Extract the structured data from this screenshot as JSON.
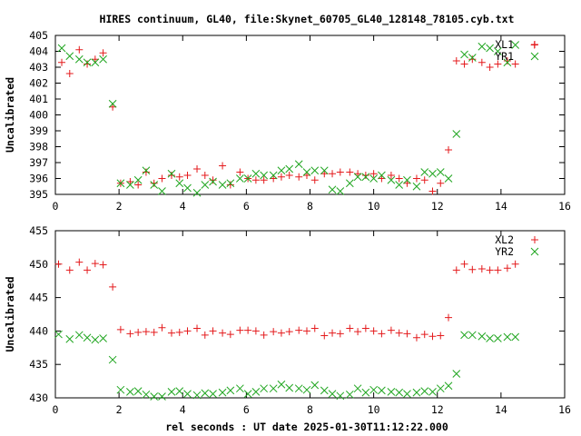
{
  "figure": {
    "title": "HIRES continuum, GL40, file:Skynet_60705_GL40_128148_78105.cyb.txt",
    "xlabel": "rel seconds : UT date 2025-01-30T11:12:22.000"
  },
  "colors": {
    "red": "#e41a1c",
    "green": "#1fa51f",
    "frame": "#000000"
  },
  "chart_data": [
    {
      "type": "scatter",
      "ylabel": "Uncalibrated",
      "xlim": [
        0,
        16
      ],
      "ylim": [
        395,
        405
      ],
      "xticks": [
        0,
        2,
        4,
        6,
        8,
        10,
        12,
        14,
        16
      ],
      "yticks": [
        395,
        396,
        397,
        398,
        399,
        400,
        401,
        402,
        403,
        404,
        405
      ],
      "legend_position": "top-right",
      "series": [
        {
          "name": "XL1",
          "marker": "plus",
          "color": "#e41a1c",
          "x": [
            0.2,
            0.45,
            0.75,
            1.0,
            1.25,
            1.5,
            1.8,
            2.05,
            2.35,
            2.6,
            2.85,
            3.1,
            3.35,
            3.65,
            3.9,
            4.15,
            4.45,
            4.7,
            4.95,
            5.25,
            5.5,
            5.8,
            6.05,
            6.3,
            6.55,
            6.85,
            7.1,
            7.35,
            7.65,
            7.9,
            8.15,
            8.45,
            8.7,
            8.95,
            9.25,
            9.5,
            9.75,
            10.0,
            10.25,
            10.55,
            10.8,
            11.05,
            11.35,
            11.6,
            11.85,
            12.1,
            12.35,
            12.6,
            12.85,
            13.1,
            13.4,
            13.65,
            13.9,
            14.2,
            14.45,
            15.05
          ],
          "y": [
            403.3,
            402.6,
            404.1,
            403.2,
            403.5,
            403.9,
            400.5,
            395.7,
            395.8,
            395.6,
            396.4,
            395.7,
            396.0,
            396.2,
            396.1,
            396.2,
            396.6,
            396.2,
            395.9,
            396.8,
            395.6,
            396.4,
            396.0,
            395.9,
            395.9,
            396.0,
            396.1,
            396.2,
            396.1,
            396.2,
            395.9,
            396.3,
            396.3,
            396.4,
            396.4,
            396.3,
            396.2,
            396.3,
            396.0,
            396.2,
            396.0,
            395.7,
            396.0,
            395.9,
            395.2,
            395.7,
            397.8,
            403.4,
            403.2,
            403.5,
            403.3,
            403.0,
            403.2,
            403.4,
            403.2,
            404.4
          ]
        },
        {
          "name": "YR1",
          "marker": "cross",
          "color": "#1fa51f",
          "x": [
            0.2,
            0.45,
            0.75,
            1.0,
            1.25,
            1.5,
            1.8,
            2.05,
            2.35,
            2.6,
            2.85,
            3.1,
            3.35,
            3.65,
            3.9,
            4.15,
            4.45,
            4.7,
            4.95,
            5.25,
            5.5,
            5.8,
            6.05,
            6.3,
            6.55,
            6.85,
            7.1,
            7.35,
            7.65,
            7.9,
            8.15,
            8.45,
            8.7,
            8.95,
            9.25,
            9.5,
            9.75,
            10.0,
            10.25,
            10.55,
            10.8,
            11.05,
            11.35,
            11.6,
            11.85,
            12.1,
            12.35,
            12.6,
            12.85,
            13.1,
            13.4,
            13.65,
            13.9,
            14.2,
            14.45
          ],
          "y": [
            404.2,
            403.7,
            403.5,
            403.3,
            403.3,
            403.5,
            400.7,
            395.7,
            395.6,
            395.9,
            396.5,
            395.6,
            395.2,
            396.3,
            395.7,
            395.4,
            395.1,
            395.6,
            395.8,
            395.6,
            395.7,
            396.0,
            396.0,
            396.3,
            396.2,
            396.2,
            396.5,
            396.6,
            396.9,
            396.4,
            396.5,
            396.5,
            395.3,
            395.2,
            395.7,
            396.1,
            396.1,
            396.0,
            396.2,
            395.9,
            395.6,
            395.9,
            395.5,
            396.4,
            396.3,
            396.4,
            396.0,
            398.8,
            403.8,
            403.6,
            404.3,
            404.2,
            404.0,
            403.3,
            404.4
          ]
        }
      ]
    },
    {
      "type": "scatter",
      "ylabel": "Uncalibrated",
      "xlim": [
        0,
        16
      ],
      "ylim": [
        430,
        455
      ],
      "xticks": [
        0,
        2,
        4,
        6,
        8,
        10,
        12,
        14,
        16
      ],
      "yticks": [
        430,
        435,
        440,
        445,
        450,
        455
      ],
      "legend_position": "top-right",
      "series": [
        {
          "name": "XL2",
          "marker": "plus",
          "color": "#e41a1c",
          "x": [
            0.1,
            0.45,
            0.75,
            1.0,
            1.25,
            1.5,
            1.8,
            2.05,
            2.35,
            2.6,
            2.85,
            3.1,
            3.35,
            3.65,
            3.9,
            4.15,
            4.45,
            4.7,
            4.95,
            5.25,
            5.5,
            5.8,
            6.05,
            6.3,
            6.55,
            6.85,
            7.1,
            7.35,
            7.65,
            7.9,
            8.15,
            8.45,
            8.7,
            8.95,
            9.25,
            9.5,
            9.75,
            10.0,
            10.25,
            10.55,
            10.8,
            11.05,
            11.35,
            11.6,
            11.85,
            12.1,
            12.35,
            12.6,
            12.85,
            13.1,
            13.4,
            13.65,
            13.9,
            14.2,
            14.45
          ],
          "y": [
            450.0,
            449.1,
            450.3,
            449.1,
            450.1,
            449.9,
            446.6,
            440.2,
            439.6,
            439.8,
            439.9,
            439.8,
            440.5,
            439.7,
            439.8,
            440.0,
            440.4,
            439.4,
            440.0,
            439.7,
            439.5,
            440.1,
            440.1,
            440.0,
            439.4,
            439.9,
            439.7,
            439.9,
            440.1,
            440.0,
            440.4,
            439.3,
            439.7,
            439.6,
            440.4,
            439.9,
            440.4,
            440.0,
            439.6,
            440.1,
            439.7,
            439.6,
            439.0,
            439.5,
            439.2,
            439.3,
            442.0,
            449.1,
            450.0,
            449.2,
            449.3,
            449.1,
            449.1,
            449.4,
            450.0
          ]
        },
        {
          "name": "YR2",
          "marker": "cross",
          "color": "#1fa51f",
          "x": [
            0.1,
            0.45,
            0.75,
            1.0,
            1.25,
            1.5,
            1.8,
            2.05,
            2.35,
            2.6,
            2.85,
            3.1,
            3.35,
            3.65,
            3.9,
            4.15,
            4.45,
            4.7,
            4.95,
            5.25,
            5.5,
            5.8,
            6.05,
            6.3,
            6.55,
            6.85,
            7.1,
            7.35,
            7.65,
            7.9,
            8.15,
            8.45,
            8.7,
            8.95,
            9.25,
            9.5,
            9.75,
            10.0,
            10.25,
            10.55,
            10.8,
            11.05,
            11.35,
            11.6,
            11.85,
            12.1,
            12.35,
            12.6,
            12.85,
            13.1,
            13.4,
            13.65,
            13.9,
            14.2,
            14.45
          ],
          "y": [
            439.5,
            438.8,
            439.4,
            439.0,
            438.7,
            438.9,
            435.7,
            431.2,
            430.9,
            431.0,
            430.5,
            430.2,
            430.2,
            430.9,
            431.0,
            430.6,
            430.4,
            430.7,
            430.6,
            430.8,
            431.1,
            431.4,
            430.6,
            430.9,
            431.4,
            431.4,
            432.0,
            431.5,
            431.4,
            431.2,
            431.9,
            431.1,
            430.6,
            430.3,
            430.5,
            431.4,
            430.8,
            431.2,
            431.1,
            430.9,
            430.8,
            430.6,
            430.8,
            431.0,
            430.9,
            431.4,
            431.8,
            433.6,
            439.4,
            439.4,
            439.2,
            438.9,
            438.9,
            439.1,
            439.1
          ]
        }
      ]
    }
  ]
}
